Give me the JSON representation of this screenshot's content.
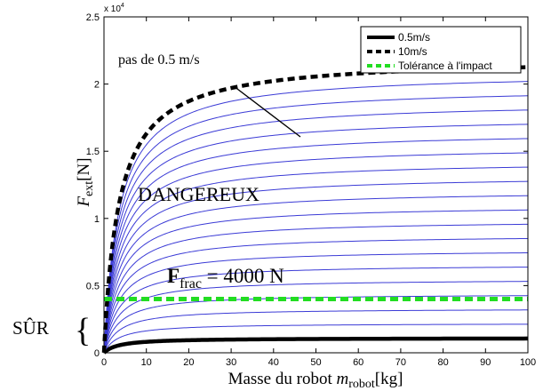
{
  "chart_data": {
    "type": "line",
    "xlabel": "Masse du robot",
    "xlabel_var": "m",
    "xlabel_sub": "robot",
    "xlabel_unit": "[kg]",
    "ylabel_var": "F",
    "ylabel_sub": "ext",
    "ylabel_unit": "[N]",
    "y_exponent": "x 10",
    "y_exponent_power": "4",
    "xlim": [
      0,
      100
    ],
    "ylim": [
      0,
      25000
    ],
    "x_ticks": [
      "0",
      "10",
      "20",
      "30",
      "40",
      "50",
      "60",
      "70",
      "80",
      "90",
      "100"
    ],
    "y_ticks": [
      "0",
      "0.5",
      "1",
      "1.5",
      "2",
      "2.5"
    ],
    "y_tick_values": [
      0,
      5000,
      10000,
      15000,
      20000,
      25000
    ],
    "velocity_step": 0.5,
    "velocity_min": 0.5,
    "velocity_max": 10,
    "curve_plateau_per_speed": 2200,
    "curve_halfsat_mass": 3.5,
    "tolerance_value": 4000,
    "colors": {
      "family_lines": "#3b3bd6",
      "bound_lines": "#000000",
      "tolerance": "#22dd22"
    },
    "legend": {
      "position": "top-right",
      "entries": [
        {
          "label": "0.5m/s",
          "style": "solid-black"
        },
        {
          "label": "10m/s",
          "style": "dashed-black"
        },
        {
          "label": "Tolérance à l'impact",
          "style": "dashed-green"
        }
      ]
    },
    "annotations": {
      "step_label": "pas de 0.5 m/s",
      "danger_label": "DANGEREUX",
      "safe_label": "SÛR",
      "ffrac_var": "F",
      "ffrac_sub": "frac",
      "ffrac_eq": " = 4000 N"
    }
  }
}
